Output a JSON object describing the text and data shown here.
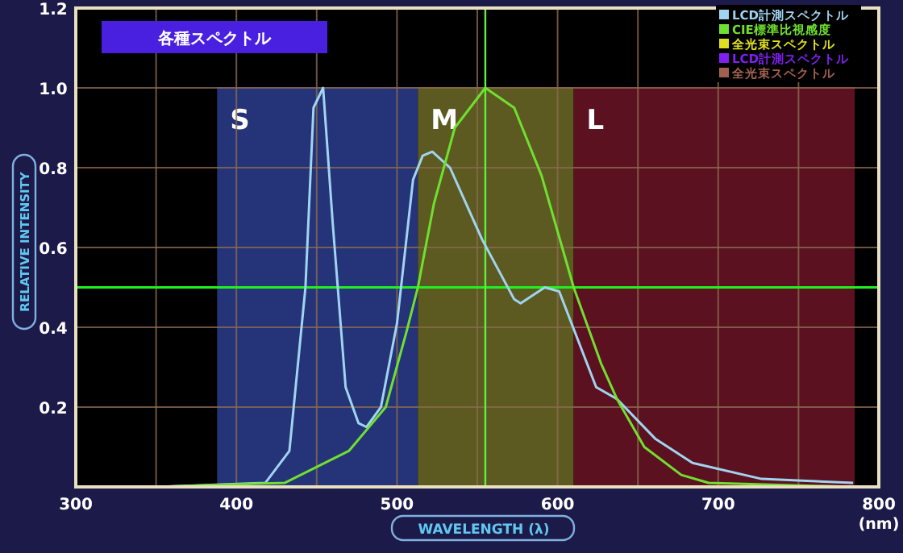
{
  "chart_data": {
    "type": "line",
    "title": "各種スペクトル",
    "xlabel": "WAVELENGTH (λ)",
    "ylabel": "RELATIVE INTENSITY",
    "annotations": [
      "(nm)"
    ],
    "xlim": [
      300,
      800
    ],
    "ylim": [
      0,
      1.2
    ],
    "xticks": [
      300,
      {
        "value": 350,
        "label": null
      },
      400,
      {
        "value": 450,
        "label": null
      },
      500,
      {
        "value": 550,
        "label": null
      },
      600,
      {
        "value": 650,
        "label": null
      },
      700,
      {
        "value": 750,
        "label": null
      },
      800
    ],
    "yticks": [
      {
        "value": 0.2,
        "label": "0.2"
      },
      {
        "value": 0.4,
        "label": "0.4"
      },
      {
        "value": 0.6,
        "label": "0.6"
      },
      {
        "value": 0.8,
        "label": "0.8"
      },
      {
        "value": 1,
        "label": "1.0"
      },
      {
        "value": 1.2,
        "label": "1.2"
      }
    ],
    "grid": true,
    "legend": "top right",
    "marker": "none",
    "line_style": "solid",
    "bands": [
      {
        "axis": "x",
        "from": 388,
        "to": 513,
        "label": "S",
        "color": "#27367e"
      },
      {
        "axis": "x",
        "from": 513,
        "to": 610,
        "label": "M",
        "color": "#615f22"
      },
      {
        "axis": "x",
        "from": 610,
        "to": 785,
        "label": "L",
        "color": "#611222"
      }
    ],
    "ref_lines": [
      {
        "axis": "y",
        "value": 0.5,
        "color": "#20f020"
      },
      {
        "axis": "x",
        "value": 555,
        "color": "#60f040"
      }
    ],
    "series": [
      {
        "name": "LCD計測スペクトル",
        "color": "#a0d4f0",
        "x": [
          350,
          418,
          433,
          443,
          448,
          454,
          460,
          468,
          476,
          481,
          490,
          500,
          510,
          516,
          522,
          533,
          553,
          573,
          577,
          592,
          601,
          624,
          637,
          661,
          684,
          727,
          784
        ],
        "values": [
          0,
          0.01,
          0.09,
          0.5,
          0.95,
          1.0,
          0.66,
          0.25,
          0.16,
          0.15,
          0.2,
          0.41,
          0.77,
          0.83,
          0.84,
          0.8,
          0.62,
          0.47,
          0.46,
          0.5,
          0.49,
          0.25,
          0.22,
          0.12,
          0.06,
          0.02,
          0.01
        ]
      },
      {
        "name": "CIE標準比視感度",
        "color": "#70e030",
        "x": [
          350,
          430,
          470,
          493,
          506,
          513,
          523,
          536,
          555,
          573,
          590,
          610,
          627,
          637,
          654,
          677,
          694,
          784
        ],
        "values": [
          0,
          0.01,
          0.09,
          0.2,
          0.39,
          0.5,
          0.71,
          0.9,
          1.0,
          0.95,
          0.78,
          0.5,
          0.31,
          0.22,
          0.1,
          0.03,
          0.01,
          0
        ]
      },
      {
        "name": "全光束スペクトル",
        "color": "#e0e020"
      },
      {
        "name": "LCD計測スペクトル",
        "color": "#8020f0"
      },
      {
        "name": "全光束スペクトル",
        "color": "#a06050"
      }
    ]
  }
}
